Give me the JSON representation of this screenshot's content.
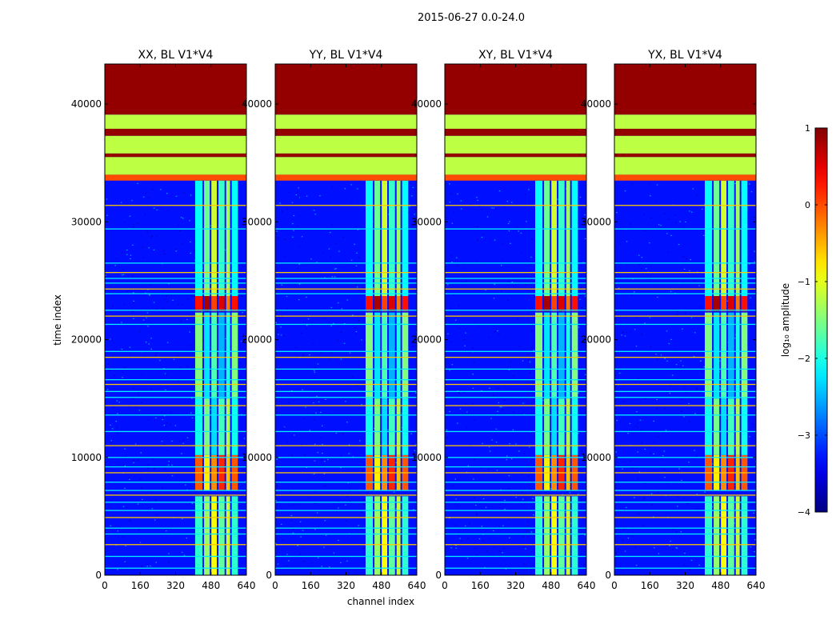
{
  "chart_data": {
    "type": "heatmap",
    "suptitle": "2015-06-27 0.0-24.0",
    "xlabel": "channel index",
    "ylabel": "time index",
    "xlim": [
      0,
      640
    ],
    "ylim": [
      0,
      43400
    ],
    "xticks": [
      0,
      160,
      320,
      480,
      640
    ],
    "yticks": [
      0,
      10000,
      20000,
      30000,
      40000
    ],
    "panels": [
      {
        "title": "XX, BL V1*V4",
        "pol": "XX"
      },
      {
        "title": "YY, BL V1*V4",
        "pol": "YY"
      },
      {
        "title": "XY, BL V1*V4",
        "pol": "XY"
      },
      {
        "title": "YX, BL V1*V4",
        "pol": "YX"
      }
    ],
    "colorbar": {
      "label": "log₁₀ amplitude",
      "range": [
        -4,
        1
      ],
      "ticks": [
        1,
        0,
        -1,
        -2,
        -3,
        -4
      ],
      "colormap": "jet"
    },
    "rfi_band_channels": [
      [
        405,
        445
      ],
      [
        445,
        478
      ],
      [
        478,
        510
      ],
      [
        510,
        545
      ],
      [
        545,
        570
      ],
      [
        570,
        605
      ]
    ],
    "rfi_time_blocks": [
      {
        "start": 0,
        "end": 6700,
        "level": -1.4
      },
      {
        "start": 7200,
        "end": 10200,
        "level": -0.3
      },
      {
        "start": 10200,
        "end": 15000,
        "level": -1.8
      },
      {
        "start": 15000,
        "end": 22300,
        "level": -2.0
      },
      {
        "start": 22400,
        "end": 23700,
        "level": 0.3
      },
      {
        "start": 23700,
        "end": 33500,
        "level": -1.6
      }
    ],
    "time_bands": [
      {
        "start": 43400,
        "end": 39100,
        "level": 0.9
      },
      {
        "start": 39100,
        "end": 37900,
        "level": -1.2
      },
      {
        "start": 37900,
        "end": 37300,
        "level": 0.9
      },
      {
        "start": 37300,
        "end": 35800,
        "level": -1.2
      },
      {
        "start": 35800,
        "end": 35500,
        "level": 0.9
      },
      {
        "start": 35500,
        "end": 34000,
        "level": -1.2
      },
      {
        "start": 34000,
        "end": 33500,
        "level": 0.0
      }
    ],
    "flag_lines": [
      31400,
      29400,
      26500,
      25700,
      25200,
      24800,
      24300,
      23900,
      22500,
      22000,
      21300,
      19000,
      18500,
      17500,
      16600,
      16200,
      15600,
      15100,
      14400,
      13600,
      12200,
      11000,
      10000,
      9200,
      8700,
      7900,
      7200,
      6800,
      6200,
      5500,
      4900,
      4000,
      3500,
      2600,
      1600,
      600
    ]
  }
}
